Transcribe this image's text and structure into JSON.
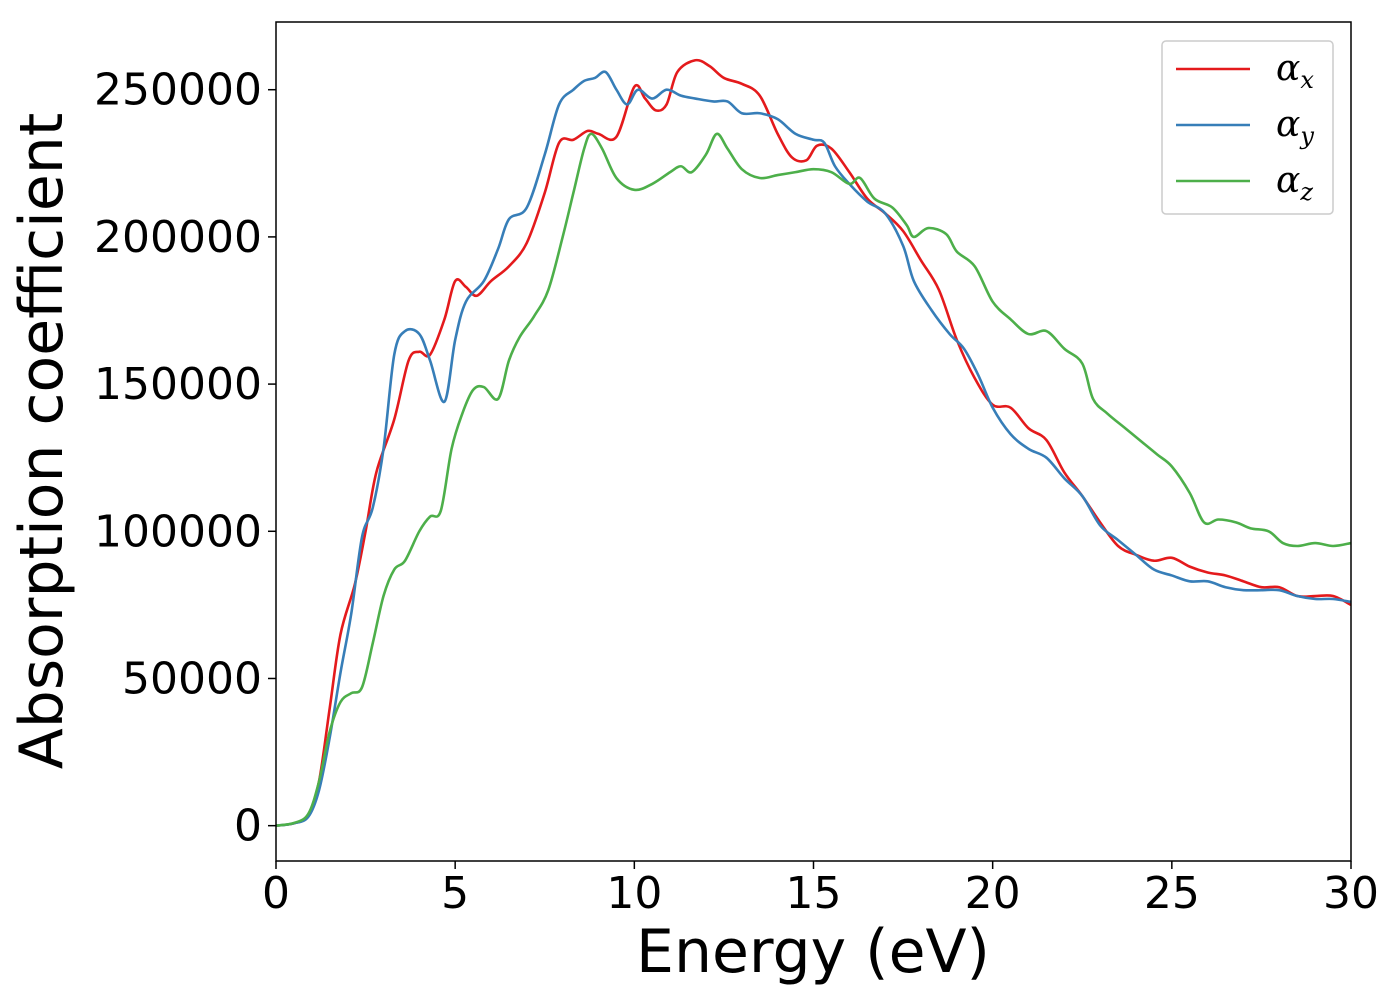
{
  "chart_data": {
    "type": "line",
    "title": "",
    "xlabel": "Energy (eV)",
    "ylabel": "Absorption coefficient",
    "xlim": [
      0,
      30
    ],
    "ylim": [
      -12000,
      273000
    ],
    "xticks": [
      0,
      5,
      10,
      15,
      20,
      25,
      30
    ],
    "xtick_labels": [
      "0",
      "5",
      "10",
      "15",
      "20",
      "25",
      "30"
    ],
    "yticks": [
      0,
      50000,
      100000,
      150000,
      200000,
      250000
    ],
    "ytick_labels": [
      "0",
      "50000",
      "100000",
      "150000",
      "200000",
      "250000"
    ],
    "grid": false,
    "legend_position": "top-right",
    "series": [
      {
        "name": "αx",
        "symbol": "α",
        "subscript": "x",
        "color": "#e41a1c",
        "points": [
          [
            0,
            0
          ],
          [
            0.5,
            800
          ],
          [
            0.9,
            3500
          ],
          [
            1.2,
            15000
          ],
          [
            1.5,
            40000
          ],
          [
            1.8,
            65000
          ],
          [
            2.2,
            82000
          ],
          [
            2.5,
            100000
          ],
          [
            2.8,
            120000
          ],
          [
            3.3,
            138000
          ],
          [
            3.7,
            158000
          ],
          [
            4.0,
            161000
          ],
          [
            4.3,
            160000
          ],
          [
            4.7,
            172000
          ],
          [
            5.0,
            185000
          ],
          [
            5.3,
            183000
          ],
          [
            5.6,
            180000
          ],
          [
            6.0,
            185000
          ],
          [
            6.5,
            190000
          ],
          [
            7.0,
            198000
          ],
          [
            7.5,
            215000
          ],
          [
            7.9,
            232000
          ],
          [
            8.3,
            233000
          ],
          [
            8.7,
            236000
          ],
          [
            9.0,
            235000
          ],
          [
            9.5,
            234000
          ],
          [
            10.0,
            251000
          ],
          [
            10.3,
            247000
          ],
          [
            10.6,
            243000
          ],
          [
            10.9,
            245000
          ],
          [
            11.2,
            256000
          ],
          [
            11.7,
            260000
          ],
          [
            12.1,
            258000
          ],
          [
            12.5,
            254000
          ],
          [
            13.0,
            252000
          ],
          [
            13.5,
            248000
          ],
          [
            14.0,
            235000
          ],
          [
            14.4,
            227000
          ],
          [
            14.8,
            226000
          ],
          [
            15.1,
            231000
          ],
          [
            15.5,
            230000
          ],
          [
            16.0,
            222000
          ],
          [
            16.5,
            213000
          ],
          [
            17.0,
            208000
          ],
          [
            17.5,
            202000
          ],
          [
            18.0,
            192000
          ],
          [
            18.5,
            182000
          ],
          [
            19.0,
            165000
          ],
          [
            19.5,
            152000
          ],
          [
            20.0,
            143000
          ],
          [
            20.5,
            142000
          ],
          [
            21.0,
            135000
          ],
          [
            21.5,
            131000
          ],
          [
            22.0,
            120000
          ],
          [
            22.5,
            112000
          ],
          [
            23.0,
            103000
          ],
          [
            23.5,
            95000
          ],
          [
            24.0,
            92000
          ],
          [
            24.5,
            90000
          ],
          [
            25.0,
            91000
          ],
          [
            25.5,
            88000
          ],
          [
            26.0,
            86000
          ],
          [
            26.5,
            85000
          ],
          [
            27.0,
            83000
          ],
          [
            27.5,
            81000
          ],
          [
            28.0,
            81000
          ],
          [
            28.5,
            78000
          ],
          [
            29.0,
            78000
          ],
          [
            29.5,
            78000
          ],
          [
            30.0,
            75000
          ]
        ]
      },
      {
        "name": "αy",
        "symbol": "α",
        "subscript": "y",
        "color": "#377eb8",
        "points": [
          [
            0,
            0
          ],
          [
            0.5,
            800
          ],
          [
            0.9,
            3000
          ],
          [
            1.2,
            12000
          ],
          [
            1.5,
            30000
          ],
          [
            1.8,
            52000
          ],
          [
            2.1,
            72000
          ],
          [
            2.4,
            98000
          ],
          [
            2.7,
            108000
          ],
          [
            3.0,
            128000
          ],
          [
            3.3,
            160000
          ],
          [
            3.6,
            168000
          ],
          [
            4.0,
            167000
          ],
          [
            4.3,
            158000
          ],
          [
            4.7,
            144000
          ],
          [
            5.0,
            165000
          ],
          [
            5.3,
            178000
          ],
          [
            5.8,
            185000
          ],
          [
            6.2,
            196000
          ],
          [
            6.5,
            206000
          ],
          [
            7.0,
            210000
          ],
          [
            7.5,
            228000
          ],
          [
            7.9,
            245000
          ],
          [
            8.3,
            250000
          ],
          [
            8.6,
            253000
          ],
          [
            8.9,
            254000
          ],
          [
            9.2,
            256000
          ],
          [
            9.5,
            250000
          ],
          [
            9.8,
            245000
          ],
          [
            10.1,
            250000
          ],
          [
            10.5,
            247000
          ],
          [
            10.9,
            250000
          ],
          [
            11.3,
            248000
          ],
          [
            11.7,
            247000
          ],
          [
            12.2,
            246000
          ],
          [
            12.6,
            246000
          ],
          [
            13.0,
            242000
          ],
          [
            13.5,
            242000
          ],
          [
            14.0,
            240000
          ],
          [
            14.5,
            235000
          ],
          [
            15.0,
            233000
          ],
          [
            15.3,
            232000
          ],
          [
            15.6,
            224000
          ],
          [
            16.0,
            218000
          ],
          [
            16.5,
            212000
          ],
          [
            17.0,
            208000
          ],
          [
            17.5,
            197000
          ],
          [
            17.8,
            185000
          ],
          [
            18.3,
            175000
          ],
          [
            18.8,
            167000
          ],
          [
            19.2,
            162000
          ],
          [
            19.6,
            153000
          ],
          [
            20.0,
            142000
          ],
          [
            20.5,
            133000
          ],
          [
            21.0,
            128000
          ],
          [
            21.5,
            125000
          ],
          [
            22.0,
            118000
          ],
          [
            22.5,
            112000
          ],
          [
            23.0,
            102000
          ],
          [
            23.5,
            97000
          ],
          [
            24.0,
            92000
          ],
          [
            24.5,
            87000
          ],
          [
            25.0,
            85000
          ],
          [
            25.5,
            83000
          ],
          [
            26.0,
            83000
          ],
          [
            26.5,
            81000
          ],
          [
            27.0,
            80000
          ],
          [
            27.5,
            80000
          ],
          [
            28.0,
            80000
          ],
          [
            28.5,
            78000
          ],
          [
            29.0,
            77000
          ],
          [
            29.5,
            77000
          ],
          [
            30.0,
            76000
          ]
        ]
      },
      {
        "name": "αz",
        "symbol": "α",
        "subscript": "z",
        "color": "#4daf4a",
        "points": [
          [
            0,
            0
          ],
          [
            0.5,
            900
          ],
          [
            0.9,
            4000
          ],
          [
            1.2,
            15000
          ],
          [
            1.5,
            32000
          ],
          [
            1.8,
            42000
          ],
          [
            2.1,
            45000
          ],
          [
            2.4,
            47000
          ],
          [
            2.7,
            62000
          ],
          [
            3.0,
            78000
          ],
          [
            3.3,
            87000
          ],
          [
            3.6,
            90000
          ],
          [
            4.0,
            100000
          ],
          [
            4.3,
            105000
          ],
          [
            4.6,
            107000
          ],
          [
            4.9,
            128000
          ],
          [
            5.2,
            140000
          ],
          [
            5.5,
            148000
          ],
          [
            5.8,
            149000
          ],
          [
            6.2,
            145000
          ],
          [
            6.5,
            158000
          ],
          [
            6.8,
            166000
          ],
          [
            7.2,
            173000
          ],
          [
            7.6,
            182000
          ],
          [
            8.0,
            200000
          ],
          [
            8.3,
            215000
          ],
          [
            8.6,
            230000
          ],
          [
            8.8,
            235000
          ],
          [
            9.1,
            230000
          ],
          [
            9.5,
            220000
          ],
          [
            10.0,
            216000
          ],
          [
            10.5,
            218000
          ],
          [
            11.0,
            222000
          ],
          [
            11.3,
            224000
          ],
          [
            11.6,
            222000
          ],
          [
            12.0,
            228000
          ],
          [
            12.3,
            235000
          ],
          [
            12.6,
            230000
          ],
          [
            13.0,
            223000
          ],
          [
            13.5,
            220000
          ],
          [
            14.0,
            221000
          ],
          [
            14.5,
            222000
          ],
          [
            15.0,
            223000
          ],
          [
            15.5,
            222000
          ],
          [
            16.0,
            218000
          ],
          [
            16.3,
            220000
          ],
          [
            16.7,
            213000
          ],
          [
            17.2,
            210000
          ],
          [
            17.6,
            204000
          ],
          [
            17.8,
            200000
          ],
          [
            18.2,
            203000
          ],
          [
            18.7,
            201000
          ],
          [
            19.0,
            195000
          ],
          [
            19.5,
            190000
          ],
          [
            20.0,
            178000
          ],
          [
            20.5,
            172000
          ],
          [
            21.0,
            167000
          ],
          [
            21.5,
            168000
          ],
          [
            22.0,
            162000
          ],
          [
            22.5,
            157000
          ],
          [
            22.8,
            145000
          ],
          [
            23.2,
            140000
          ],
          [
            23.7,
            135000
          ],
          [
            24.2,
            130000
          ],
          [
            24.6,
            126000
          ],
          [
            25.0,
            122000
          ],
          [
            25.5,
            113000
          ],
          [
            25.9,
            103000
          ],
          [
            26.3,
            104000
          ],
          [
            26.8,
            103000
          ],
          [
            27.2,
            101000
          ],
          [
            27.7,
            100000
          ],
          [
            28.1,
            96000
          ],
          [
            28.5,
            95000
          ],
          [
            29.0,
            96000
          ],
          [
            29.5,
            95000
          ],
          [
            30.0,
            96000
          ]
        ]
      }
    ]
  }
}
